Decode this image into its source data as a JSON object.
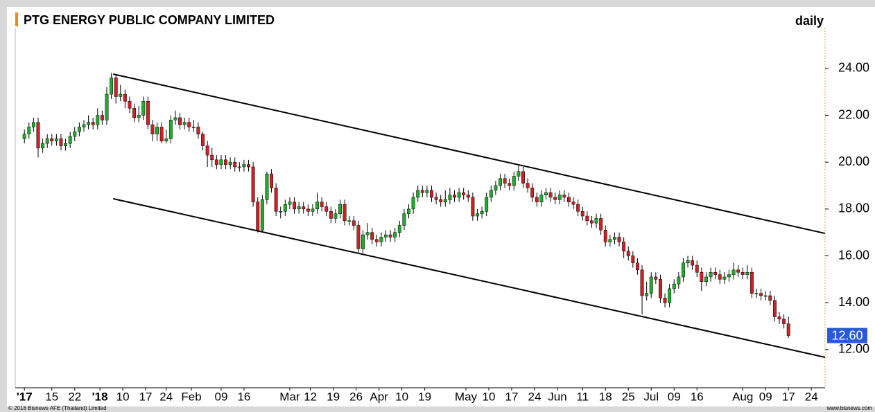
{
  "chart_data": {
    "type": "candlestick",
    "title": "PTG ENERGY PUBLIC COMPANY LIMITED",
    "period": "daily",
    "copyright": "© 2018 Bisnews AFE (Thailand) Limited",
    "source": "www.bisnews.com",
    "last_label": "12.60",
    "up_color": "#1fae2b",
    "down_color": "#d01f26",
    "last_color": "#2a5bd7",
    "open": [
      21.0,
      21.2,
      21.5,
      21.7,
      20.6,
      20.8,
      21.0,
      20.9,
      21.0,
      20.7,
      20.8,
      21.1,
      21.3,
      21.5,
      21.6,
      21.7,
      21.6,
      22.0,
      21.8,
      22.9,
      23.6,
      22.8,
      22.9,
      22.6,
      22.3,
      21.9,
      22.0,
      22.6,
      21.6,
      21.2,
      21.5,
      20.9,
      21.0,
      21.8,
      21.9,
      21.6,
      21.7,
      21.5,
      21.5,
      21.2,
      20.7,
      20.3,
      20.1,
      19.9,
      20.1,
      19.9,
      20.0,
      19.8,
      19.8,
      19.9,
      19.8,
      18.3,
      17.1,
      18.4,
      19.5,
      18.9,
      17.9,
      17.9,
      18.2,
      18.3,
      18.0,
      18.1,
      18.0,
      17.9,
      18.0,
      18.3,
      18.1,
      17.9,
      17.6,
      17.8,
      18.2,
      17.5,
      17.5,
      17.3,
      16.3,
      16.9,
      17.0,
      16.7,
      16.6,
      16.8,
      16.9,
      16.8,
      17.0,
      17.3,
      17.8,
      18.0,
      18.5,
      18.8,
      18.7,
      18.8,
      18.5,
      18.4,
      18.3,
      18.4,
      18.6,
      18.5,
      18.7,
      18.6,
      18.5,
      17.7,
      17.8,
      17.9,
      18.5,
      18.8,
      19.0,
      19.3,
      19.1,
      19.0,
      19.4,
      19.6,
      19.1,
      18.9,
      18.5,
      18.3,
      18.6,
      18.7,
      18.5,
      18.4,
      18.6,
      18.5,
      18.3,
      18.2,
      17.9,
      17.7,
      17.5,
      17.4,
      17.6,
      17.1,
      16.6,
      16.7,
      16.8,
      16.6,
      16.2,
      16.0,
      15.7,
      15.4,
      14.3,
      14.4,
      15.1,
      15.0,
      14.2,
      14.0,
      14.6,
      14.8,
      15.1,
      15.7,
      15.8,
      15.6,
      15.3,
      14.9,
      15.1,
      15.3,
      15.2,
      15.0,
      15.1,
      15.2,
      15.4,
      15.3,
      15.2,
      15.3,
      14.4,
      14.4,
      14.3,
      14.3,
      14.1,
      13.4,
      13.3,
      13.1
    ],
    "high": [
      21.4,
      21.7,
      21.9,
      21.9,
      21.0,
      21.2,
      21.2,
      21.2,
      21.2,
      21.0,
      21.3,
      21.5,
      21.7,
      21.8,
      22.0,
      21.9,
      22.3,
      22.2,
      23.2,
      23.8,
      23.7,
      23.3,
      23.1,
      22.8,
      22.5,
      22.4,
      22.8,
      22.8,
      21.8,
      21.7,
      21.7,
      21.4,
      22.0,
      22.2,
      22.1,
      21.9,
      21.9,
      21.8,
      21.7,
      21.3,
      20.9,
      20.6,
      20.3,
      20.3,
      20.3,
      20.2,
      20.2,
      20.0,
      20.1,
      20.1,
      20.0,
      18.5,
      18.6,
      19.6,
      19.7,
      19.1,
      18.1,
      18.4,
      18.5,
      18.5,
      18.3,
      18.3,
      18.2,
      18.2,
      18.7,
      18.5,
      18.3,
      18.1,
      18.0,
      18.4,
      18.4,
      17.7,
      17.7,
      17.5,
      17.1,
      17.4,
      17.2,
      16.9,
      17.0,
      17.1,
      17.1,
      17.2,
      17.5,
      18.0,
      18.2,
      18.7,
      19.0,
      19.0,
      19.0,
      19.0,
      18.7,
      18.6,
      18.8,
      18.9,
      18.8,
      18.9,
      18.9,
      18.8,
      18.7,
      18.0,
      18.1,
      18.7,
      19.0,
      19.2,
      19.5,
      19.5,
      19.3,
      19.6,
      19.9,
      19.8,
      19.3,
      19.1,
      18.7,
      18.8,
      18.9,
      18.9,
      18.7,
      18.8,
      18.8,
      18.7,
      18.5,
      18.4,
      18.1,
      17.9,
      17.7,
      17.8,
      17.8,
      17.3,
      16.9,
      17.0,
      17.0,
      16.8,
      16.4,
      16.2,
      15.9,
      15.6,
      14.9,
      15.3,
      15.3,
      15.2,
      14.4,
      14.8,
      15.0,
      15.3,
      15.9,
      16.0,
      16.0,
      15.8,
      15.5,
      15.3,
      15.5,
      15.5,
      15.4,
      15.3,
      15.4,
      15.7,
      15.6,
      15.5,
      15.6,
      15.5,
      14.6,
      14.6,
      14.5,
      14.5,
      14.3,
      13.6,
      13.5,
      13.4
    ],
    "low": [
      20.8,
      21.0,
      21.3,
      20.2,
      20.4,
      20.6,
      20.7,
      20.7,
      20.5,
      20.5,
      20.6,
      20.9,
      21.1,
      21.3,
      21.4,
      21.4,
      21.4,
      21.6,
      21.6,
      22.7,
      22.5,
      22.6,
      22.3,
      22.1,
      21.7,
      21.7,
      21.8,
      21.4,
      20.9,
      20.9,
      20.8,
      20.8,
      20.8,
      21.6,
      21.4,
      21.4,
      21.3,
      21.3,
      21.0,
      20.5,
      19.8,
      19.8,
      19.7,
      19.7,
      19.7,
      19.7,
      19.6,
      19.6,
      19.6,
      19.6,
      18.1,
      17.0,
      17.0,
      18.2,
      18.7,
      17.7,
      17.6,
      17.7,
      18.0,
      17.8,
      17.8,
      17.8,
      17.7,
      17.7,
      17.8,
      17.9,
      17.7,
      17.4,
      17.4,
      17.6,
      17.3,
      17.3,
      17.1,
      16.1,
      16.1,
      16.7,
      16.5,
      16.4,
      16.4,
      16.6,
      16.6,
      16.6,
      16.8,
      17.1,
      17.6,
      17.8,
      18.3,
      18.5,
      18.5,
      18.3,
      18.2,
      18.1,
      18.1,
      18.2,
      18.3,
      18.3,
      18.4,
      18.3,
      17.5,
      17.5,
      17.6,
      17.7,
      18.3,
      18.6,
      18.8,
      18.9,
      18.8,
      18.8,
      19.2,
      18.9,
      18.7,
      18.3,
      18.1,
      18.1,
      18.4,
      18.3,
      18.2,
      18.2,
      18.3,
      18.1,
      18.0,
      17.7,
      17.5,
      17.3,
      17.2,
      17.2,
      16.9,
      16.4,
      16.4,
      16.5,
      16.4,
      15.9,
      15.8,
      15.5,
      15.2,
      13.5,
      14.1,
      14.2,
      14.8,
      14.0,
      13.8,
      13.8,
      14.4,
      14.6,
      14.9,
      15.5,
      15.4,
      15.1,
      14.5,
      14.7,
      14.9,
      15.0,
      14.8,
      14.8,
      14.9,
      15.0,
      15.1,
      15.0,
      15.0,
      14.2,
      14.2,
      14.1,
      14.1,
      13.9,
      13.2,
      13.1,
      12.9,
      12.5
    ],
    "close": [
      21.2,
      21.5,
      21.7,
      20.6,
      20.8,
      21.0,
      20.9,
      21.0,
      20.7,
      20.8,
      21.1,
      21.3,
      21.5,
      21.6,
      21.7,
      21.6,
      22.0,
      21.8,
      22.9,
      23.6,
      22.8,
      22.9,
      22.6,
      22.3,
      21.9,
      22.0,
      22.6,
      21.6,
      21.2,
      21.5,
      20.9,
      21.0,
      21.8,
      21.9,
      21.6,
      21.7,
      21.5,
      21.5,
      21.2,
      20.7,
      20.3,
      20.1,
      19.9,
      20.1,
      19.9,
      20.0,
      19.8,
      19.8,
      19.9,
      19.8,
      18.3,
      17.1,
      18.4,
      19.5,
      18.9,
      17.9,
      17.9,
      18.2,
      18.3,
      18.0,
      18.1,
      18.0,
      17.9,
      18.0,
      18.3,
      18.1,
      17.9,
      17.6,
      17.8,
      18.2,
      17.5,
      17.5,
      17.3,
      16.3,
      16.9,
      17.0,
      16.7,
      16.6,
      16.8,
      16.9,
      16.8,
      17.0,
      17.3,
      17.8,
      18.0,
      18.5,
      18.8,
      18.7,
      18.8,
      18.5,
      18.4,
      18.3,
      18.4,
      18.6,
      18.5,
      18.7,
      18.6,
      18.5,
      17.7,
      17.8,
      17.9,
      18.5,
      18.8,
      19.0,
      19.3,
      19.1,
      19.0,
      19.4,
      19.6,
      19.1,
      18.9,
      18.5,
      18.3,
      18.6,
      18.7,
      18.5,
      18.4,
      18.6,
      18.5,
      18.3,
      18.2,
      17.9,
      17.7,
      17.5,
      17.4,
      17.6,
      17.1,
      16.6,
      16.7,
      16.8,
      16.6,
      16.2,
      16.0,
      15.7,
      15.4,
      14.3,
      14.4,
      15.1,
      15.0,
      14.2,
      14.0,
      14.6,
      14.8,
      15.1,
      15.7,
      15.8,
      15.6,
      15.3,
      14.9,
      15.1,
      15.3,
      15.2,
      15.0,
      15.1,
      15.2,
      15.4,
      15.3,
      15.2,
      15.3,
      14.4,
      14.4,
      14.3,
      14.3,
      14.1,
      13.4,
      13.3,
      13.1,
      12.6
    ],
    "trend_lines": [
      {
        "x": [
          19.4,
          175
        ],
        "y": [
          23.76,
          16.96
        ]
      },
      {
        "x": [
          19.4,
          175
        ],
        "y": [
          18.44,
          11.67
        ]
      }
    ],
    "xlim": [
      -2,
      175
    ],
    "ylim": [
      10.37,
      25.74
    ],
    "xticks": [
      {
        "value": 0,
        "label": "'17"
      },
      {
        "value": 6,
        "label": "15"
      },
      {
        "value": 11,
        "label": "22"
      },
      {
        "value": 16.5,
        "label": "'18"
      },
      {
        "value": 21.5,
        "label": "10"
      },
      {
        "value": 26.5,
        "label": "17"
      },
      {
        "value": 31,
        "label": "24"
      },
      {
        "value": 36.5,
        "label": "Feb"
      },
      {
        "value": 43,
        "label": "09"
      },
      {
        "value": 48,
        "label": "16"
      },
      {
        "value": 58,
        "label": "Mar"
      },
      {
        "value": 62.5,
        "label": "12"
      },
      {
        "value": 67.5,
        "label": "19"
      },
      {
        "value": 72.5,
        "label": "26"
      },
      {
        "value": 77.5,
        "label": "Apr"
      },
      {
        "value": 82.5,
        "label": "10"
      },
      {
        "value": 87.5,
        "label": "19"
      },
      {
        "value": 96.5,
        "label": "May"
      },
      {
        "value": 101.5,
        "label": "10"
      },
      {
        "value": 106.5,
        "label": "17"
      },
      {
        "value": 111.5,
        "label": "24"
      },
      {
        "value": 116.5,
        "label": "Jun"
      },
      {
        "value": 122,
        "label": "11"
      },
      {
        "value": 127,
        "label": "18"
      },
      {
        "value": 132,
        "label": "25"
      },
      {
        "value": 137,
        "label": "Jul"
      },
      {
        "value": 142,
        "label": "09"
      },
      {
        "value": 147,
        "label": "16"
      },
      {
        "value": 157,
        "label": "Aug"
      },
      {
        "value": 162,
        "label": "09"
      },
      {
        "value": 167,
        "label": "17"
      },
      {
        "value": 172,
        "label": "24"
      }
    ],
    "yticks": [
      {
        "value": 12,
        "label": "12.00"
      },
      {
        "value": 14,
        "label": "14.00"
      },
      {
        "value": 16,
        "label": "16.00"
      },
      {
        "value": 18,
        "label": "18.00"
      },
      {
        "value": 20,
        "label": "20.00"
      },
      {
        "value": 22,
        "label": "22.00"
      },
      {
        "value": 24,
        "label": "24.00"
      }
    ]
  }
}
